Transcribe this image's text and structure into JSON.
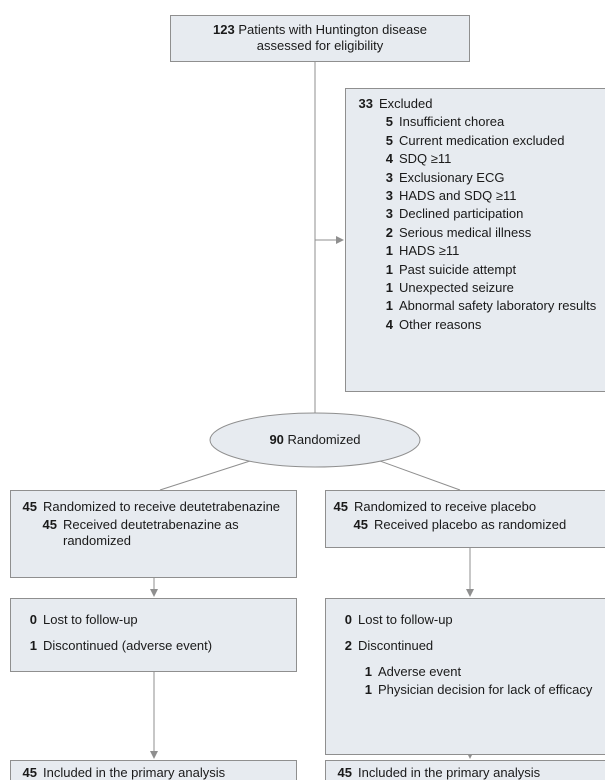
{
  "enrollment": {
    "count": 123,
    "label": "Patients with Huntington disease assessed for eligibility"
  },
  "excluded": {
    "count": 33,
    "label": "Excluded",
    "reasons": [
      {
        "count": 5,
        "label": "Insufficient chorea"
      },
      {
        "count": 5,
        "label": "Current medication excluded"
      },
      {
        "count": 4,
        "label": "SDQ ≥11"
      },
      {
        "count": 3,
        "label": "Exclusionary ECG"
      },
      {
        "count": 3,
        "label": "HADS and SDQ ≥11"
      },
      {
        "count": 3,
        "label": "Declined participation"
      },
      {
        "count": 2,
        "label": "Serious medical illness"
      },
      {
        "count": 1,
        "label": "HADS ≥11"
      },
      {
        "count": 1,
        "label": "Past suicide attempt"
      },
      {
        "count": 1,
        "label": "Unexpected seizure"
      },
      {
        "count": 1,
        "label": "Abnormal safety laboratory results"
      },
      {
        "count": 4,
        "label": "Other reasons"
      }
    ]
  },
  "randomized": {
    "count": 90,
    "label": "Randomized"
  },
  "arms": [
    {
      "allocation": [
        {
          "count": 45,
          "label": "Randomized to receive deutetrabenazine",
          "reasons": [
            {
              "count": 45,
              "label": "Received deutetrabenazine as randomized"
            }
          ]
        }
      ],
      "followup": [
        {
          "count": 0,
          "label": "Lost to follow-up"
        },
        {
          "count": 1,
          "label": "Discontinued (adverse event)"
        }
      ],
      "analysis": [
        {
          "count": 45,
          "label": "Included in the primary analysis"
        }
      ]
    },
    {
      "allocation": [
        {
          "count": 45,
          "label": "Randomized to receive placebo",
          "reasons": [
            {
              "count": 45,
              "label": "Received placebo as randomized"
            }
          ]
        }
      ],
      "followup": [
        {
          "count": 0,
          "label": "Lost to follow-up"
        },
        {
          "count": 2,
          "label": "Discontinued",
          "reasons": [
            {
              "count": 1,
              "label": "Adverse event"
            },
            {
              "count": 1,
              "label": "Physician decision for lack of efficacy"
            }
          ]
        }
      ],
      "analysis": [
        {
          "count": 45,
          "label": "Included in the primary analysis"
        }
      ]
    }
  ]
}
